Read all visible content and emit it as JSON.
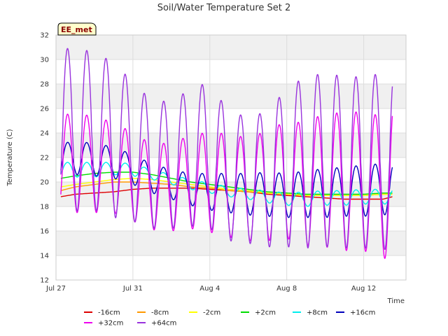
{
  "chart_data": {
    "type": "line",
    "title": "Soil/Water Temperature Set 2",
    "xlabel": "Time",
    "ylabel": "Temperature (C)",
    "badge": "EE_met",
    "x_unit": "days from Jul 27",
    "xlim": [
      0,
      18.2
    ],
    "ylim": [
      12,
      32
    ],
    "yticks": [
      12,
      14,
      16,
      18,
      20,
      22,
      24,
      26,
      28,
      30,
      32
    ],
    "xticks": [
      {
        "value": 0,
        "label": "Jul 27"
      },
      {
        "value": 4,
        "label": "Jul 31"
      },
      {
        "value": 8,
        "label": "Aug 4"
      },
      {
        "value": 12,
        "label": "Aug 8"
      },
      {
        "value": 16,
        "label": "Aug 12"
      }
    ],
    "grid": true,
    "legend_position": "bottom",
    "x": [
      0.25,
      1.0,
      2.0,
      3.0,
      4.0,
      5.0,
      6.0,
      7.0,
      8.0,
      9.0,
      10.0,
      11.0,
      12.0,
      13.0,
      14.0,
      15.0,
      16.0,
      17.0,
      17.5
    ],
    "series": [
      {
        "name": "-16cm",
        "color": "#dd0000",
        "style": "smooth",
        "values": [
          18.8,
          19.0,
          19.1,
          19.2,
          19.4,
          19.5,
          19.5,
          19.5,
          19.4,
          19.3,
          19.2,
          19.0,
          18.9,
          18.8,
          18.7,
          18.6,
          18.6,
          18.6,
          18.8
        ]
      },
      {
        "name": "-8cm",
        "color": "#ff9900",
        "style": "smooth",
        "values": [
          19.3,
          19.6,
          19.8,
          20.0,
          20.0,
          19.9,
          19.8,
          19.6,
          19.5,
          19.3,
          19.2,
          19.1,
          19.0,
          18.9,
          18.9,
          18.9,
          18.9,
          19.0,
          19.0
        ]
      },
      {
        "name": "-2cm",
        "color": "#ffff00",
        "style": "smooth",
        "values": [
          19.6,
          19.8,
          20.0,
          20.2,
          20.3,
          20.2,
          20.0,
          19.8,
          19.6,
          19.4,
          19.3,
          19.1,
          19.0,
          18.9,
          18.9,
          18.9,
          18.9,
          19.0,
          19.0
        ]
      },
      {
        "name": "+2cm",
        "color": "#00dd00",
        "style": "smooth",
        "values": [
          20.3,
          20.5,
          20.7,
          20.8,
          20.8,
          20.6,
          20.3,
          20.0,
          19.8,
          19.6,
          19.4,
          19.2,
          19.1,
          19.0,
          19.0,
          19.0,
          19.0,
          19.1,
          19.1
        ]
      },
      {
        "name": "+8cm",
        "color": "#00eeee",
        "style": "oscillating",
        "mean": [
          21.0,
          21.0,
          21.0,
          21.1,
          21.0,
          20.6,
          20.2,
          19.8,
          19.5,
          19.2,
          19.0,
          18.8,
          18.6,
          18.6,
          18.7,
          18.7,
          18.8,
          18.8,
          18.8
        ],
        "amplitude": [
          0.6,
          0.6,
          0.6,
          0.5,
          0.5,
          0.4,
          0.4,
          0.4,
          0.4,
          0.4,
          0.4,
          0.5,
          0.5,
          0.6,
          0.6,
          0.6,
          0.6,
          0.6,
          0.6
        ]
      },
      {
        "name": "+16cm",
        "color": "#0000bb",
        "style": "oscillating",
        "mean": [
          21.7,
          22.0,
          21.8,
          21.6,
          21.0,
          20.3,
          19.8,
          19.4,
          19.2,
          19.1,
          19.0,
          19.0,
          18.9,
          19.0,
          19.1,
          19.2,
          19.3,
          19.4,
          19.5
        ],
        "amplitude": [
          1.4,
          1.4,
          1.3,
          1.3,
          1.2,
          1.2,
          1.2,
          1.3,
          1.5,
          1.6,
          1.7,
          1.8,
          1.8,
          1.9,
          2.0,
          2.0,
          2.1,
          2.1,
          2.1
        ]
      },
      {
        "name": "+32cm",
        "color": "#ee00ee",
        "style": "oscillating",
        "mean": [
          21.2,
          21.6,
          21.4,
          21.2,
          20.4,
          19.6,
          19.6,
          20.0,
          20.0,
          19.7,
          19.4,
          19.7,
          20.2,
          19.8,
          20.2,
          20.0,
          20.1,
          19.5,
          20.3
        ],
        "amplitude": [
          4.2,
          4.1,
          3.9,
          3.7,
          3.6,
          3.5,
          3.6,
          3.8,
          4.1,
          4.2,
          4.2,
          4.5,
          4.8,
          5.0,
          5.5,
          5.6,
          5.7,
          5.8,
          6.3
        ]
      },
      {
        "name": "+64cm",
        "color": "#9933dd",
        "style": "oscillating",
        "mean": [
          24.2,
          24.2,
          24.2,
          23.4,
          22.5,
          21.4,
          21.4,
          22.0,
          22.2,
          20.4,
          20.2,
          20.2,
          21.2,
          21.6,
          21.8,
          21.6,
          21.6,
          21.7,
          21.8
        ],
        "amplitude": [
          6.8,
          6.6,
          6.5,
          6.3,
          5.7,
          5.2,
          5.2,
          5.6,
          6.0,
          5.2,
          5.2,
          5.5,
          6.5,
          7.0,
          7.1,
          7.0,
          7.0,
          7.2,
          7.4
        ]
      }
    ]
  }
}
